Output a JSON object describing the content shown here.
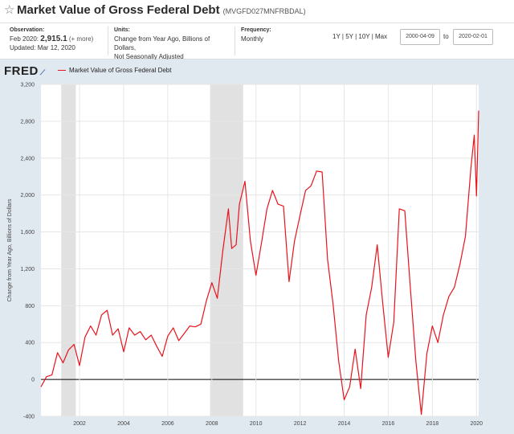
{
  "header": {
    "title": "Market Value of Gross Federal Debt",
    "series_id": "(MVGFD027MNFRBDAL)",
    "star_icon": "star-icon"
  },
  "info": {
    "observation_label": "Observation:",
    "observation_date": "Feb 2020:",
    "observation_value": "2,915.1",
    "more_link": "(+ more)",
    "updated": "Updated: Mar 12, 2020",
    "units_label": "Units:",
    "units_value": "Change from Year Ago, Billions of Dollars,",
    "units_value2": "Not Seasonally Adjusted",
    "frequency_label": "Frequency:",
    "frequency_value": "Monthly"
  },
  "controls": {
    "range_1y": "1Y",
    "range_5y": "5Y",
    "range_10y": "10Y",
    "range_max": "Max",
    "separator": "|",
    "start_date": "2000-04-09",
    "to_label": "to",
    "end_date": "2020-02-01"
  },
  "logo": "FRED",
  "chart_data": {
    "type": "line",
    "series": [
      {
        "name": "Market Value of Gross Federal Debt",
        "color": "#e8131b",
        "x": [
          2000.25,
          2000.5,
          2000.75,
          2001.0,
          2001.25,
          2001.5,
          2001.75,
          2002.0,
          2002.25,
          2002.5,
          2002.75,
          2003.0,
          2003.25,
          2003.5,
          2003.75,
          2004.0,
          2004.25,
          2004.5,
          2004.75,
          2005.0,
          2005.25,
          2005.5,
          2005.75,
          2006.0,
          2006.25,
          2006.5,
          2006.75,
          2007.0,
          2007.25,
          2007.5,
          2007.75,
          2008.0,
          2008.25,
          2008.5,
          2008.75,
          2008.9,
          2009.1,
          2009.25,
          2009.5,
          2009.75,
          2010.0,
          2010.25,
          2010.5,
          2010.75,
          2011.0,
          2011.25,
          2011.5,
          2011.75,
          2012.0,
          2012.25,
          2012.5,
          2012.75,
          2013.0,
          2013.25,
          2013.5,
          2013.75,
          2014.0,
          2014.25,
          2014.5,
          2014.75,
          2015.0,
          2015.25,
          2015.5,
          2015.75,
          2016.0,
          2016.25,
          2016.5,
          2016.75,
          2017.0,
          2017.25,
          2017.5,
          2017.75,
          2018.0,
          2018.25,
          2018.5,
          2018.75,
          2019.0,
          2019.25,
          2019.5,
          2019.75,
          2019.9,
          2020.0,
          2020.1
        ],
        "values": [
          -80,
          30,
          50,
          290,
          180,
          320,
          380,
          150,
          460,
          580,
          480,
          700,
          750,
          480,
          550,
          300,
          560,
          480,
          520,
          430,
          480,
          360,
          250,
          470,
          560,
          420,
          500,
          580,
          570,
          600,
          850,
          1050,
          880,
          1400,
          1850,
          1420,
          1460,
          1900,
          2150,
          1500,
          1130,
          1480,
          1850,
          2050,
          1900,
          1880,
          1060,
          1500,
          1780,
          2050,
          2100,
          2260,
          2250,
          1300,
          810,
          200,
          -220,
          -80,
          330,
          -100,
          700,
          1000,
          1460,
          820,
          240,
          620,
          1850,
          1830,
          1000,
          200,
          -380,
          280,
          580,
          400,
          700,
          900,
          1000,
          1250,
          1550,
          2300,
          2650,
          1990,
          2915
        ]
      }
    ],
    "recessions": [
      [
        2001.17,
        2001.83
      ],
      [
        2007.92,
        2009.42
      ]
    ],
    "title": "Market Value of Gross Federal Debt",
    "ylabel": "Change from Year Ago, Billions of Dollars",
    "xlim": [
      2000.25,
      2020.1
    ],
    "ylim": [
      -400,
      3200
    ],
    "yticks": [
      -400,
      0,
      400,
      800,
      1200,
      1600,
      2000,
      2400,
      2800,
      3200
    ],
    "ytick_labels": [
      "-400",
      "0",
      "400",
      "800",
      "1,200",
      "1,600",
      "2,000",
      "2,400",
      "2,800",
      "3,200"
    ],
    "xticks": [
      2002,
      2004,
      2006,
      2008,
      2010,
      2012,
      2014,
      2016,
      2018,
      2020
    ],
    "xtick_labels": [
      "2002",
      "2004",
      "2006",
      "2008",
      "2010",
      "2012",
      "2014",
      "2016",
      "2018",
      "2020"
    ],
    "grid": true,
    "legend": "top-left"
  }
}
